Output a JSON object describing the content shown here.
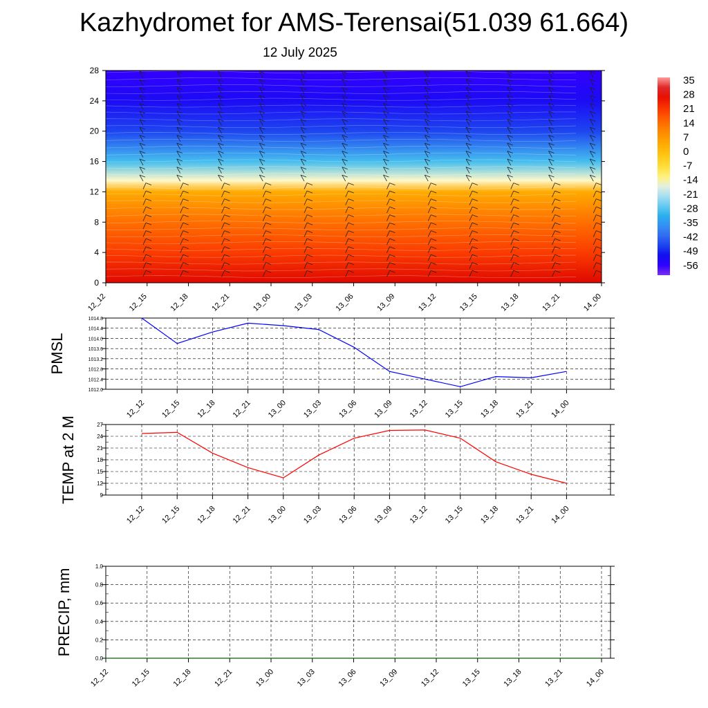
{
  "title": "Kazhydromet for AMS-Terensai(51.039 61.664)",
  "subtitle": "12 July 2025",
  "colorbar": {
    "labels": [
      "35",
      "28",
      "21",
      "14",
      "7",
      "0",
      "-7",
      "-14",
      "-21",
      "-28",
      "-35",
      "-42",
      "-49",
      "-56"
    ]
  },
  "chart_data": [
    {
      "type": "heatmap",
      "ylim": [
        0,
        28
      ],
      "y_ticks": [
        "0",
        "4",
        "8",
        "12",
        "16",
        "20",
        "24",
        "28"
      ],
      "categories": [
        "12_12",
        "12_15",
        "12_18",
        "12_21",
        "13_00",
        "13_03",
        "13_06",
        "13_09",
        "13_12",
        "13_15",
        "13_18",
        "13_21",
        "14_00"
      ],
      "y_levels": [
        0,
        4,
        8,
        12,
        13.5,
        16,
        20,
        24,
        28
      ],
      "values_by_level": [
        30,
        22,
        15,
        5,
        -14,
        -28,
        -45,
        -52,
        -56
      ],
      "wind_barbs": true
    },
    {
      "type": "line",
      "ylabel": "PMSL",
      "ylim": [
        1012.0,
        1014.8
      ],
      "y_ticks": [
        "1012.0",
        "1012.4",
        "1012.8",
        "1013.2",
        "1013.6",
        "1014.0",
        "1014.4",
        "1014.8"
      ],
      "categories": [
        "12_12",
        "12_15",
        "12_18",
        "12_21",
        "13_00",
        "13_03",
        "13_06",
        "13_09",
        "13_12",
        "13_15",
        "13_18",
        "13_21",
        "14_00"
      ],
      "values": [
        1014.8,
        1013.8,
        1014.25,
        1014.6,
        1014.5,
        1014.35,
        1013.65,
        1012.7,
        1012.4,
        1012.1,
        1012.5,
        1012.45,
        1012.7
      ],
      "color": "#0000ff"
    },
    {
      "type": "line",
      "ylabel": "TEMP at 2 M",
      "ylim": [
        9,
        27
      ],
      "y_ticks": [
        "9",
        "12",
        "15",
        "18",
        "21",
        "24",
        "27"
      ],
      "categories": [
        "12_12",
        "12_15",
        "12_18",
        "12_21",
        "13_00",
        "13_03",
        "13_06",
        "13_09",
        "13_12",
        "13_15",
        "13_18",
        "13_21",
        "14_00"
      ],
      "values": [
        24.7,
        25.0,
        19.7,
        16.0,
        13.4,
        19.2,
        23.5,
        25.5,
        25.6,
        23.5,
        17.5,
        14.3,
        12.0
      ],
      "color": "#ff0000"
    },
    {
      "type": "line",
      "ylabel": "PRECIP, mm",
      "ylim": [
        0.0,
        1.0
      ],
      "y_ticks": [
        "0.0",
        "0.2",
        "0.4",
        "0.6",
        "0.8",
        "1.0"
      ],
      "categories": [
        "12_12",
        "12_15",
        "12_18",
        "12_21",
        "13_00",
        "13_03",
        "13_06",
        "13_09",
        "13_12",
        "13_15",
        "13_18",
        "13_21",
        "14_00"
      ],
      "values": [
        0,
        0,
        0,
        0,
        0,
        0,
        0,
        0,
        0,
        0,
        0,
        0,
        0
      ],
      "color": "#006400"
    }
  ]
}
